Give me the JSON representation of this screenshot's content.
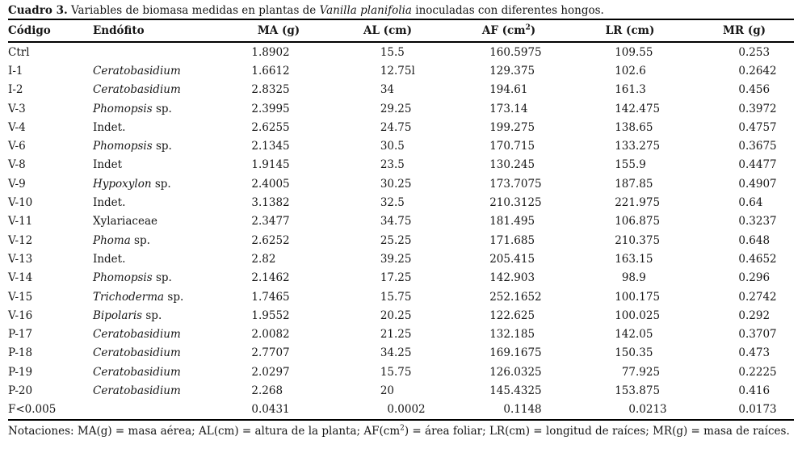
{
  "title": {
    "label": "Cuadro 3.",
    "before_italic": " Variables de biomasa medidas en plantas de ",
    "species_italic": "Vanilla planifolia",
    "after_italic": " inoculadas con diferentes hongos."
  },
  "table": {
    "columns": [
      {
        "key": "code",
        "label": "Código"
      },
      {
        "key": "endo",
        "label": "Endófito"
      },
      {
        "key": "ma",
        "label": "MA (g)"
      },
      {
        "key": "al",
        "label": "AL (cm)"
      },
      {
        "key": "af",
        "label": "AF (cm",
        "sup": "2",
        "post": ")"
      },
      {
        "key": "lr",
        "label": "LR (cm)"
      },
      {
        "key": "mr",
        "label": "MR (g)"
      }
    ],
    "rows": [
      {
        "code": "Ctrl",
        "endo_italic": "",
        "endo_roman": "",
        "ma": "1.8902",
        "al": "15.5",
        "af": "160.5975",
        "lr": "109.55",
        "mr": "0.253"
      },
      {
        "code": "I-1",
        "endo_italic": "Ceratobasidium",
        "endo_roman": "",
        "ma": "1.6612",
        "al": "12.75l",
        "af": "129.375",
        "lr": "102.6",
        "mr": "0.2642"
      },
      {
        "code": "I-2",
        "endo_italic": "Ceratobasidium",
        "endo_roman": "",
        "ma": "2.8325",
        "al": "34",
        "af": "194.61",
        "lr": "161.3",
        "mr": "0.456"
      },
      {
        "code": "V-3",
        "endo_italic": "Phomopsis",
        "endo_roman": " sp.",
        "ma": "2.3995",
        "al": "29.25",
        "af": "173.14",
        "lr": "142.475",
        "mr": "0.3972"
      },
      {
        "code": "V-4",
        "endo_italic": "",
        "endo_roman": "Indet.",
        "ma": "2.6255",
        "al": "24.75",
        "af": "199.275",
        "lr": "138.65",
        "mr": "0.4757"
      },
      {
        "code": "V-6",
        "endo_italic": "Phomopsis",
        "endo_roman": " sp.",
        "ma": "2.1345",
        "al": "30.5",
        "af": "170.715",
        "lr": "133.275",
        "mr": "0.3675"
      },
      {
        "code": "V-8",
        "endo_italic": "",
        "endo_roman": "Indet",
        "ma": "1.9145",
        "al": "23.5",
        "af": "130.245",
        "lr": "155.9",
        "mr": "0.4477"
      },
      {
        "code": "V-9",
        "endo_italic": "Hypoxylon",
        "endo_roman": " sp.",
        "ma": "2.4005",
        "al": "30.25",
        "af": "173.7075",
        "lr": "187.85",
        "mr": "0.4907"
      },
      {
        "code": "V-10",
        "endo_italic": "",
        "endo_roman": "Indet.",
        "ma": "3.1382",
        "al": "32.5",
        "af": "210.3125",
        "lr": "221.975",
        "mr": "0.64"
      },
      {
        "code": "V-11",
        "endo_italic": "",
        "endo_roman": "Xylariaceae",
        "ma": "2.3477",
        "al": "34.75",
        "af": "181.495",
        "lr": "106.875",
        "mr": "0.3237"
      },
      {
        "code": "V-12",
        "endo_italic": "Phoma",
        "endo_roman": " sp.",
        "ma": "2.6252",
        "al": "25.25",
        "af": "171.685",
        "lr": "210.375",
        "mr": "0.648"
      },
      {
        "code": "V-13",
        "endo_italic": "",
        "endo_roman": "Indet.",
        "ma": "2.82",
        "al": "39.25",
        "af": "205.415",
        "lr": "163.15",
        "mr": "0.4652"
      },
      {
        "code": "V-14",
        "endo_italic": "Phomopsis",
        "endo_roman": " sp.",
        "ma": "2.1462",
        "al": "17.25",
        "af": "142.903",
        "lr": "98.9",
        "mr": "0.296"
      },
      {
        "code": "V-15",
        "endo_italic": "Trichoderma",
        "endo_roman": " sp.",
        "ma": "1.7465",
        "al": "15.75",
        "af": "252.1652",
        "lr": "100.175",
        "mr": "0.2742"
      },
      {
        "code": "V-16",
        "endo_italic": "Bipolaris",
        "endo_roman": " sp.",
        "ma": "1.9552",
        "al": "20.25",
        "af": "122.625",
        "lr": "100.025",
        "mr": "0.292"
      },
      {
        "code": "P-17",
        "endo_italic": "Ceratobasidium",
        "endo_roman": "",
        "ma": "2.0082",
        "al": "21.25",
        "af": "132.185",
        "lr": "142.05",
        "mr": "0.3707"
      },
      {
        "code": "P-18",
        "endo_italic": "Ceratobasidium",
        "endo_roman": "",
        "ma": "2.7707",
        "al": "34.25",
        "af": "169.1675",
        "lr": "150.35",
        "mr": "0.473"
      },
      {
        "code": "P-19",
        "endo_italic": "Ceratobasidium",
        "endo_roman": "",
        "ma": "2.0297",
        "al": "15.75",
        "af": "126.0325",
        "lr": "77.925",
        "mr": "0.2225"
      },
      {
        "code": "P-20",
        "endo_italic": "Ceratobasidium",
        "endo_roman": "",
        "ma": "2.268",
        "al": "20",
        "af": "145.4325",
        "lr": "153.875",
        "mr": "0.416"
      },
      {
        "code": "F<0.005",
        "endo_italic": "",
        "endo_roman": "",
        "ma": "0.0431",
        "al": "0.0002",
        "af": "0.1148",
        "lr": "0.0213",
        "mr": "0.0173"
      }
    ]
  },
  "footnote": {
    "pre": "Notaciones: MA(g) = masa aérea; AL(cm) = altura de la planta; AF(cm",
    "sup": "2",
    "post": ") = área foliar; LR(cm) = longitud de raíces; MR(g) = masa de raíces."
  }
}
